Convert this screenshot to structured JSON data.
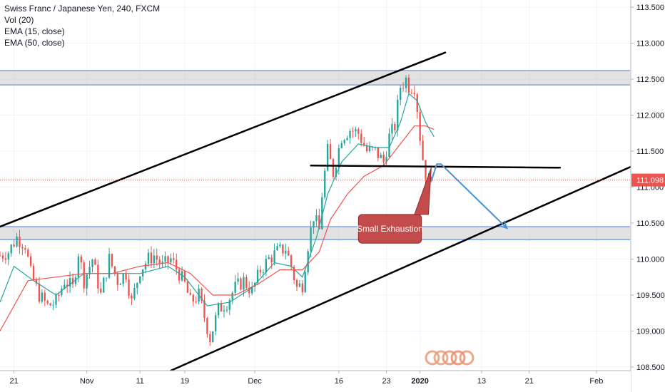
{
  "legend": {
    "line1": "Swiss Franc / Japanese Yen, 240, FXCM",
    "line2": "Vol (20)",
    "line3": "EMA (15, close)",
    "line4": "EMA (50, close)"
  },
  "chart_data": {
    "type": "candlestick",
    "symbol": "CHFJPY",
    "interval": "240",
    "source": "FXCM",
    "ylim": [
      108.45,
      113.6
    ],
    "y_ticks": [
      108.5,
      109.0,
      109.5,
      110.0,
      110.5,
      111.0,
      111.5,
      112.0,
      112.5,
      113.0,
      113.5
    ],
    "y_tick_labels": [
      "108.500",
      "109.000",
      "109.500",
      "110.000",
      "110.500",
      "111.000",
      "111.500",
      "112.000",
      "112.500",
      "113.000",
      "113.500"
    ],
    "last_price": 111.098,
    "last_price_label": "111.098",
    "x_ticks": [
      {
        "label": "21",
        "bar": 5
      },
      {
        "label": "Nov",
        "bar": 31
      },
      {
        "label": "11",
        "bar": 50
      },
      {
        "label": "19",
        "bar": 66
      },
      {
        "label": "Dec",
        "bar": 91
      },
      {
        "label": "16",
        "bar": 121
      },
      {
        "label": "23",
        "bar": 138
      },
      {
        "label": "2020",
        "bar": 150
      },
      {
        "label": "13",
        "bar": 172
      },
      {
        "label": "21",
        "bar": 189
      },
      {
        "label": "Feb",
        "bar": 213
      }
    ],
    "x_tick_bold": [
      "2020"
    ],
    "n_bars_axis": 225,
    "anchors": [
      [
        0,
        110.05
      ],
      [
        3,
        110.1
      ],
      [
        6,
        110.3
      ],
      [
        9,
        110.2
      ],
      [
        11,
        109.8
      ],
      [
        14,
        109.5
      ],
      [
        17,
        109.35
      ],
      [
        20,
        109.4
      ],
      [
        23,
        109.7
      ],
      [
        26,
        109.6
      ],
      [
        28,
        110.1
      ],
      [
        30,
        109.7
      ],
      [
        33,
        110.0
      ],
      [
        36,
        109.5
      ],
      [
        39,
        110.0
      ],
      [
        42,
        109.7
      ],
      [
        45,
        109.8
      ],
      [
        47,
        109.4
      ],
      [
        50,
        109.85
      ],
      [
        53,
        110.0
      ],
      [
        55,
        110.05
      ],
      [
        58,
        109.9
      ],
      [
        61,
        110.0
      ],
      [
        64,
        109.8
      ],
      [
        66,
        109.65
      ],
      [
        68,
        109.4
      ],
      [
        71,
        109.5
      ],
      [
        73,
        109.2
      ],
      [
        75,
        108.9
      ],
      [
        78,
        109.3
      ],
      [
        81,
        109.4
      ],
      [
        84,
        109.6
      ],
      [
        87,
        109.7
      ],
      [
        90,
        109.55
      ],
      [
        93,
        109.85
      ],
      [
        96,
        110.0
      ],
      [
        99,
        110.1
      ],
      [
        102,
        110.15
      ],
      [
        104,
        109.9
      ],
      [
        106,
        109.6
      ],
      [
        108,
        109.65
      ],
      [
        110,
        110.2
      ],
      [
        112,
        110.6
      ],
      [
        114,
        110.4
      ],
      [
        115,
        110.9
      ],
      [
        117,
        111.5
      ],
      [
        119,
        111.2
      ],
      [
        122,
        111.7
      ],
      [
        125,
        111.8
      ],
      [
        128,
        111.75
      ],
      [
        131,
        111.5
      ],
      [
        134,
        111.5
      ],
      [
        137,
        111.35
      ],
      [
        139,
        111.7
      ],
      [
        141,
        111.85
      ],
      [
        143,
        112.4
      ],
      [
        145,
        112.5
      ],
      [
        146,
        112.4
      ],
      [
        148,
        112.4
      ],
      [
        149,
        112.1
      ],
      [
        150,
        111.7
      ],
      [
        151,
        111.4
      ],
      [
        152,
        111.2
      ],
      [
        153,
        111.05
      ],
      [
        154,
        111.1
      ]
    ],
    "ema_15": {
      "name": "EMA (15, close)",
      "color": "#26a69a",
      "points": [
        [
          0,
          109.4
        ],
        [
          5,
          109.9
        ],
        [
          12,
          109.7
        ],
        [
          20,
          109.5
        ],
        [
          30,
          109.8
        ],
        [
          40,
          109.8
        ],
        [
          50,
          109.8
        ],
        [
          60,
          109.9
        ],
        [
          66,
          109.75
        ],
        [
          74,
          109.35
        ],
        [
          82,
          109.4
        ],
        [
          90,
          109.6
        ],
        [
          98,
          109.95
        ],
        [
          104,
          109.9
        ],
        [
          108,
          109.75
        ],
        [
          113,
          110.3
        ],
        [
          117,
          110.9
        ],
        [
          122,
          111.35
        ],
        [
          128,
          111.6
        ],
        [
          134,
          111.55
        ],
        [
          139,
          111.55
        ],
        [
          143,
          111.9
        ],
        [
          146,
          112.3
        ],
        [
          149,
          112.2
        ],
        [
          152,
          111.9
        ],
        [
          155,
          111.7
        ]
      ]
    },
    "ema_50": {
      "name": "EMA (50, close)",
      "color": "#ef5350",
      "points": [
        [
          0,
          109.0
        ],
        [
          10,
          109.7
        ],
        [
          20,
          109.75
        ],
        [
          30,
          109.8
        ],
        [
          40,
          109.8
        ],
        [
          50,
          109.9
        ],
        [
          60,
          109.95
        ],
        [
          68,
          109.8
        ],
        [
          76,
          109.5
        ],
        [
          84,
          109.5
        ],
        [
          92,
          109.65
        ],
        [
          100,
          109.85
        ],
        [
          108,
          109.85
        ],
        [
          114,
          110.1
        ],
        [
          118,
          110.55
        ],
        [
          124,
          110.9
        ],
        [
          130,
          111.15
        ],
        [
          137,
          111.3
        ],
        [
          143,
          111.6
        ],
        [
          148,
          111.85
        ],
        [
          152,
          111.85
        ],
        [
          155,
          111.8
        ]
      ]
    },
    "zones": [
      {
        "from": 112.42,
        "to": 112.62,
        "color": "#4a7bd6"
      },
      {
        "from": 110.27,
        "to": 110.45,
        "color": "#4a7bd6"
      }
    ],
    "trendlines": [
      {
        "from": [
          -2,
          110.42
        ],
        "to": [
          159,
          112.87
        ],
        "color": "#000000",
        "width": 2.5
      },
      {
        "from": [
          61,
          108.45
        ],
        "to": [
          228,
          111.33
        ],
        "color": "#000000",
        "width": 2.5
      },
      {
        "from": [
          111,
          111.3
        ],
        "to": [
          200,
          111.27
        ],
        "color": "#000000",
        "width": 2.5
      }
    ],
    "projection": {
      "color": "#4a90d6",
      "points": [
        [
          154,
          111.08
        ],
        [
          156,
          111.32
        ],
        [
          157.5,
          111.32
        ],
        [
          181,
          110.43
        ]
      ]
    },
    "callout": {
      "text": "Small Exhaustion",
      "x1": 128,
      "x2": 150.5,
      "y_top": 110.62,
      "y_bottom": 110.22,
      "tail": [
        [
          148,
          110.62
        ],
        [
          154,
          111.27
        ],
        [
          153,
          110.62
        ]
      ],
      "fill": "#c44b4b",
      "text_color": "#ffffff"
    },
    "price_line": {
      "value": 111.098,
      "color": "#ef5350"
    },
    "candle_up_color": "#26a69a",
    "candle_down_color": "#ef5350"
  }
}
